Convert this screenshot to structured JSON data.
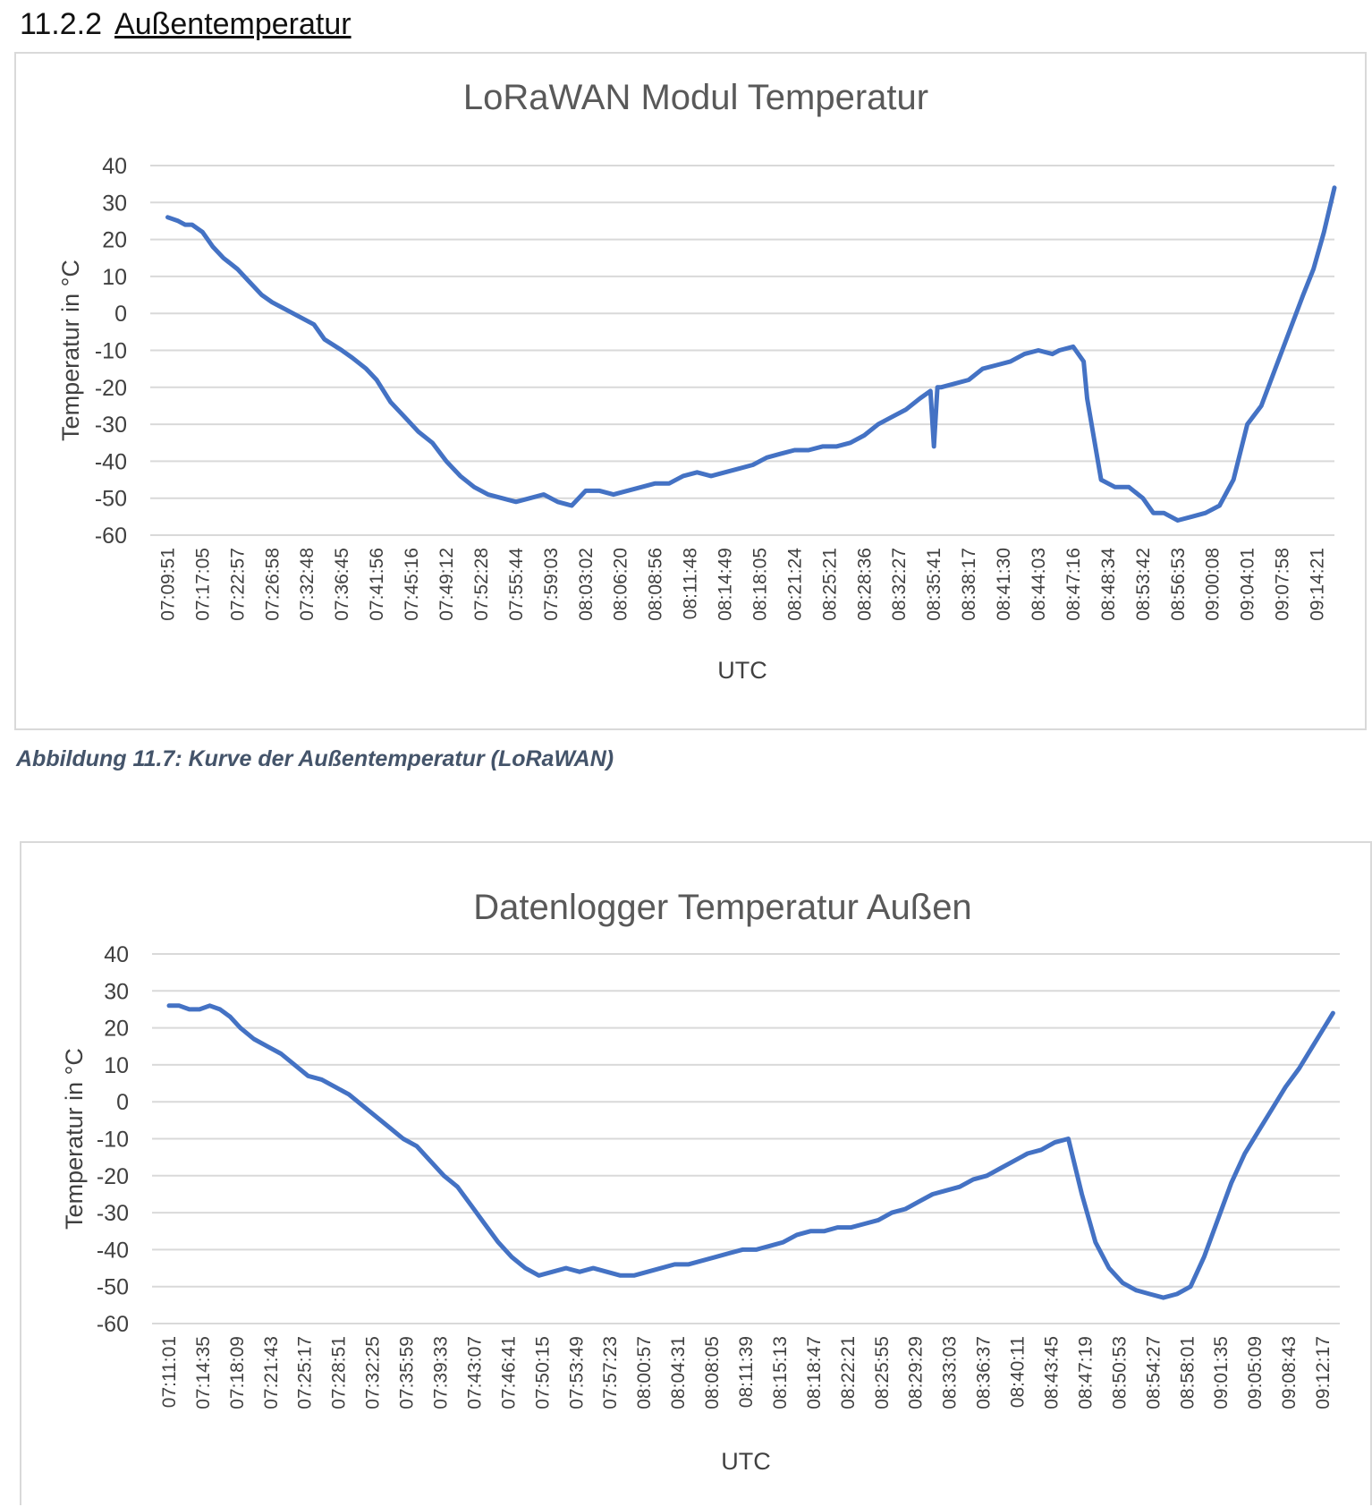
{
  "heading": {
    "number": "11.2.2",
    "text": "Außentemperatur"
  },
  "caption": "Abbildung 11.7: Kurve der Außentemperatur (LoRaWAN)",
  "chart_data": [
    {
      "type": "line",
      "title": "LoRaWAN Modul Temperatur",
      "xlabel": "UTC",
      "ylabel": "Temperatur in °C",
      "ylim": [
        -60,
        40
      ],
      "yticks": [
        40,
        30,
        20,
        10,
        0,
        -10,
        -20,
        -30,
        -40,
        -50,
        -60
      ],
      "grid": true,
      "legend": "none",
      "line_color": "#4472c4",
      "categories": [
        "07:09:51",
        "07:17:05",
        "07:22:57",
        "07:26:58",
        "07:32:48",
        "07:36:45",
        "07:41:56",
        "07:45:16",
        "07:49:12",
        "07:52:28",
        "07:55:44",
        "07:59:03",
        "08:03:02",
        "08:06:20",
        "08:08:56",
        "08:11:48",
        "08:14:49",
        "08:18:05",
        "08:21:24",
        "08:25:21",
        "08:28:36",
        "08:32:27",
        "08:35:41",
        "08:38:17",
        "08:41:30",
        "08:44:03",
        "08:47:16",
        "08:48:34",
        "08:53:42",
        "08:56:53",
        "09:00:08",
        "09:04:01",
        "09:07:58",
        "09:14:21"
      ],
      "series": [
        {
          "x": [
            0,
            0.3,
            0.5,
            0.7,
            1.0,
            1.3,
            1.6,
            2.0,
            2.3,
            2.7,
            3.0,
            3.4,
            3.8,
            4.2,
            4.5,
            5.0,
            5.3,
            5.7,
            6.0,
            6.4,
            6.8,
            7.2,
            7.6,
            8.0,
            8.4,
            8.8,
            9.2,
            9.6,
            10.0,
            10.4,
            10.8,
            11.2,
            11.6,
            12.0,
            12.4,
            12.8,
            13.2,
            13.6,
            14.0,
            14.4,
            14.8,
            15.2,
            15.6,
            16.0,
            16.4,
            16.8,
            17.2,
            17.6,
            18.0,
            18.4,
            18.8,
            19.2,
            19.6,
            20.0,
            20.4,
            20.8,
            21.2,
            21.6,
            21.9,
            22.0,
            22.1,
            22.2,
            22.6,
            23.0,
            23.4,
            23.8,
            24.2,
            24.6,
            25.0,
            25.4,
            25.6,
            26.0,
            26.3,
            26.4,
            26.8,
            27.2,
            27.6,
            28.0,
            28.3,
            28.6,
            29.0,
            29.4,
            29.8,
            30.2,
            30.6,
            31.0,
            31.4,
            31.8,
            32.2,
            32.6,
            32.9,
            33.2,
            33.5
          ],
          "values": [
            26,
            25,
            24,
            24,
            22,
            18,
            15,
            12,
            9,
            5,
            3,
            1,
            -1,
            -3,
            -7,
            -10,
            -12,
            -15,
            -18,
            -24,
            -28,
            -32,
            -35,
            -40,
            -44,
            -47,
            -49,
            -50,
            -51,
            -50,
            -49,
            -51,
            -52,
            -48,
            -48,
            -49,
            -48,
            -47,
            -46,
            -46,
            -44,
            -43,
            -44,
            -43,
            -42,
            -41,
            -39,
            -38,
            -37,
            -37,
            -36,
            -36,
            -35,
            -33,
            -30,
            -28,
            -26,
            -23,
            -21,
            -36,
            -20,
            -20,
            -19,
            -18,
            -15,
            -14,
            -13,
            -11,
            -10,
            -11,
            -10,
            -9,
            -13,
            -23,
            -45,
            -47,
            -47,
            -50,
            -54,
            -54,
            -56,
            -55,
            -54,
            -52,
            -45,
            -30,
            -25,
            -15,
            -5,
            5,
            12,
            22,
            34
          ]
        }
      ]
    },
    {
      "type": "line",
      "title": "Datenlogger Temperatur Außen",
      "xlabel": "UTC",
      "ylabel": "Temperatur in °C",
      "ylim": [
        -60,
        40
      ],
      "yticks": [
        40,
        30,
        20,
        10,
        0,
        -10,
        -20,
        -30,
        -40,
        -50,
        -60
      ],
      "grid": true,
      "legend": "none",
      "line_color": "#4472c4",
      "categories": [
        "07:11:01",
        "07:14:35",
        "07:18:09",
        "07:21:43",
        "07:25:17",
        "07:28:51",
        "07:32:25",
        "07:35:59",
        "07:39:33",
        "07:43:07",
        "07:46:41",
        "07:50:15",
        "07:53:49",
        "07:57:23",
        "08:00:57",
        "08:04:31",
        "08:08:05",
        "08:11:39",
        "08:15:13",
        "08:18:47",
        "08:22:21",
        "08:25:55",
        "08:29:29",
        "08:33:03",
        "08:36:37",
        "08:40:11",
        "08:43:45",
        "08:47:19",
        "08:50:53",
        "08:54:27",
        "08:58:01",
        "09:01:35",
        "09:05:09",
        "09:08:43",
        "09:12:17"
      ],
      "series": [
        {
          "x": [
            0,
            0.3,
            0.6,
            0.9,
            1.2,
            1.5,
            1.8,
            2.1,
            2.5,
            2.9,
            3.3,
            3.7,
            4.1,
            4.5,
            4.9,
            5.3,
            5.7,
            6.1,
            6.5,
            6.9,
            7.3,
            7.7,
            8.1,
            8.5,
            8.9,
            9.3,
            9.7,
            10.1,
            10.5,
            10.9,
            11.3,
            11.7,
            12.1,
            12.5,
            12.9,
            13.3,
            13.7,
            14.1,
            14.5,
            14.9,
            15.3,
            15.7,
            16.1,
            16.5,
            16.9,
            17.3,
            17.7,
            18.1,
            18.5,
            18.9,
            19.3,
            19.7,
            20.1,
            20.5,
            20.9,
            21.3,
            21.7,
            22.1,
            22.5,
            22.9,
            23.3,
            23.7,
            24.1,
            24.5,
            24.9,
            25.3,
            25.7,
            26.1,
            26.5,
            26.9,
            27.3,
            27.7,
            28.1,
            28.5,
            28.9,
            29.3,
            29.7,
            30.1,
            30.5,
            30.9,
            31.3,
            31.7,
            32.1,
            32.5,
            32.9,
            33.3,
            33.7,
            34.1,
            34.3
          ],
          "values": [
            26,
            26,
            25,
            25,
            26,
            25,
            23,
            20,
            17,
            15,
            13,
            10,
            7,
            6,
            4,
            2,
            -1,
            -4,
            -7,
            -10,
            -12,
            -16,
            -20,
            -23,
            -28,
            -33,
            -38,
            -42,
            -45,
            -47,
            -46,
            -45,
            -46,
            -45,
            -46,
            -47,
            -47,
            -46,
            -45,
            -44,
            -44,
            -43,
            -42,
            -41,
            -40,
            -40,
            -39,
            -38,
            -36,
            -35,
            -35,
            -34,
            -34,
            -33,
            -32,
            -30,
            -29,
            -27,
            -25,
            -24,
            -23,
            -21,
            -20,
            -18,
            -16,
            -14,
            -13,
            -11,
            -10,
            -25,
            -38,
            -45,
            -49,
            -51,
            -52,
            -53,
            -52,
            -50,
            -42,
            -32,
            -22,
            -14,
            -8,
            -2,
            4,
            9,
            15,
            21,
            24
          ]
        }
      ]
    }
  ]
}
